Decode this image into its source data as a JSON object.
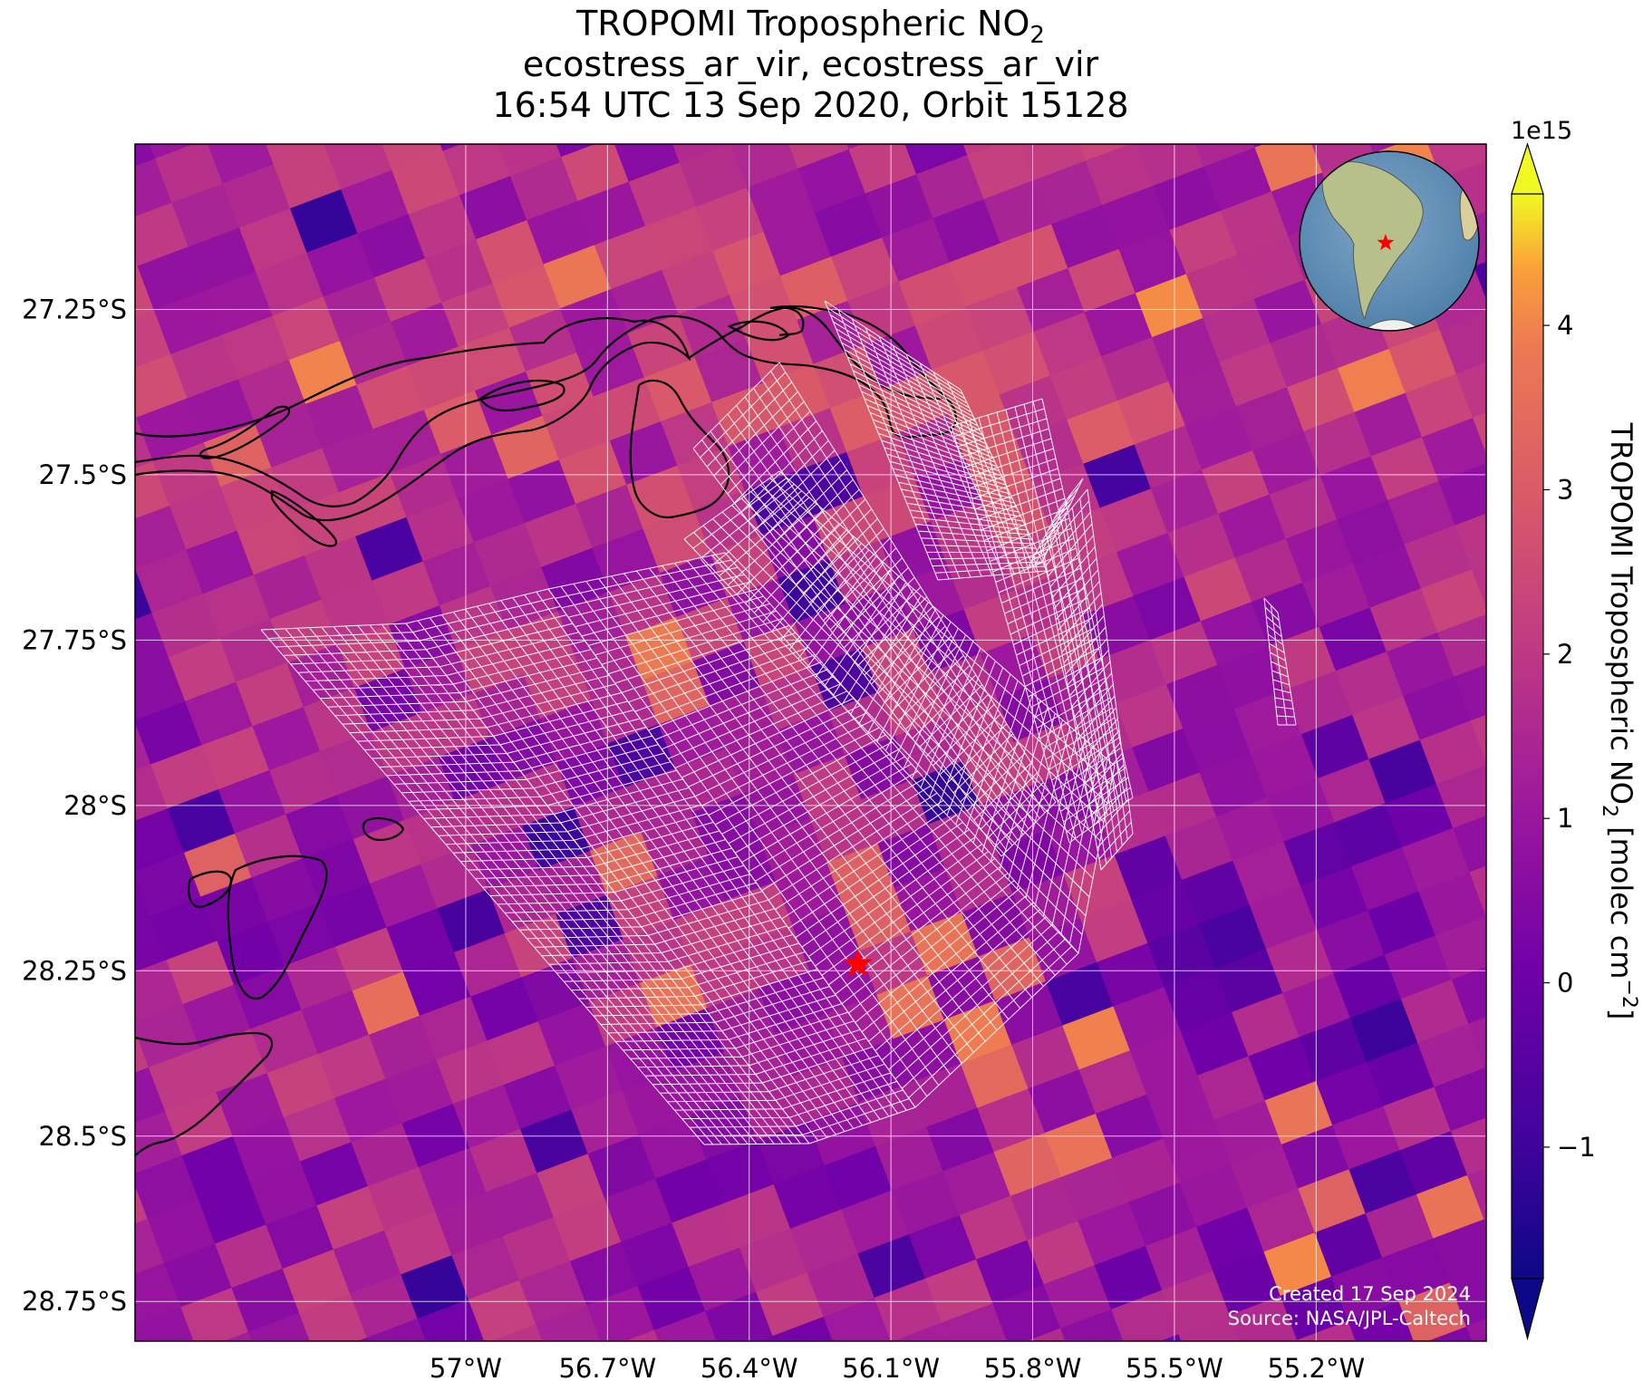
{
  "title": {
    "line1_prefix": "TROPOMI Tropospheric NO",
    "line1_subscript": "2",
    "line2": "ecostress_ar_vir, ecostress_ar_vir",
    "line3": "16:54 UTC 13 Sep 2020, Orbit 15128"
  },
  "map": {
    "lon_range": [
      -57.7,
      -54.84
    ],
    "lat_range": [
      -28.81,
      -27.0
    ],
    "lon_ticks": [
      {
        "value": -57.0,
        "label": "57°W"
      },
      {
        "value": -56.7,
        "label": "56.7°W"
      },
      {
        "value": -56.4,
        "label": "56.4°W"
      },
      {
        "value": -56.1,
        "label": "56.1°W"
      },
      {
        "value": -55.8,
        "label": "55.8°W"
      },
      {
        "value": -55.5,
        "label": "55.5°W"
      },
      {
        "value": -55.2,
        "label": "55.2°W"
      }
    ],
    "lat_ticks": [
      {
        "value": -27.25,
        "label": "27.25°S"
      },
      {
        "value": -27.5,
        "label": "27.5°S"
      },
      {
        "value": -27.75,
        "label": "27.75°S"
      },
      {
        "value": -28.0,
        "label": "28°S"
      },
      {
        "value": -28.25,
        "label": "28.25°S"
      },
      {
        "value": -28.5,
        "label": "28.5°S"
      },
      {
        "value": -28.75,
        "label": "28.75°S"
      }
    ],
    "gridlines": true,
    "target_marker": {
      "lon": -56.17,
      "lat": -28.24,
      "symbol": "star",
      "color": "#ff0000"
    },
    "credits": [
      "Created 17 Sep 2024",
      "Source: NASA/JPL-Caltech"
    ],
    "inset": {
      "type": "orthographic globe",
      "placement": "top-right",
      "marker_color": "#ff0000"
    }
  },
  "colorbar": {
    "label_prefix": "TROPOMI Tropospheric NO",
    "label_subscript": "2",
    "label_suffix": " [molec cm",
    "label_superscript": "−2",
    "label_close": "]",
    "exponent": "1e15",
    "range": [
      -1.8,
      4.8
    ],
    "extend": "both",
    "colormap": "plasma",
    "ticks": [
      {
        "value": -1,
        "label": "−1"
      },
      {
        "value": 0,
        "label": "0"
      },
      {
        "value": 1,
        "label": "1"
      },
      {
        "value": 2,
        "label": "2"
      },
      {
        "value": 3,
        "label": "3"
      },
      {
        "value": 4,
        "label": "4"
      }
    ]
  }
}
